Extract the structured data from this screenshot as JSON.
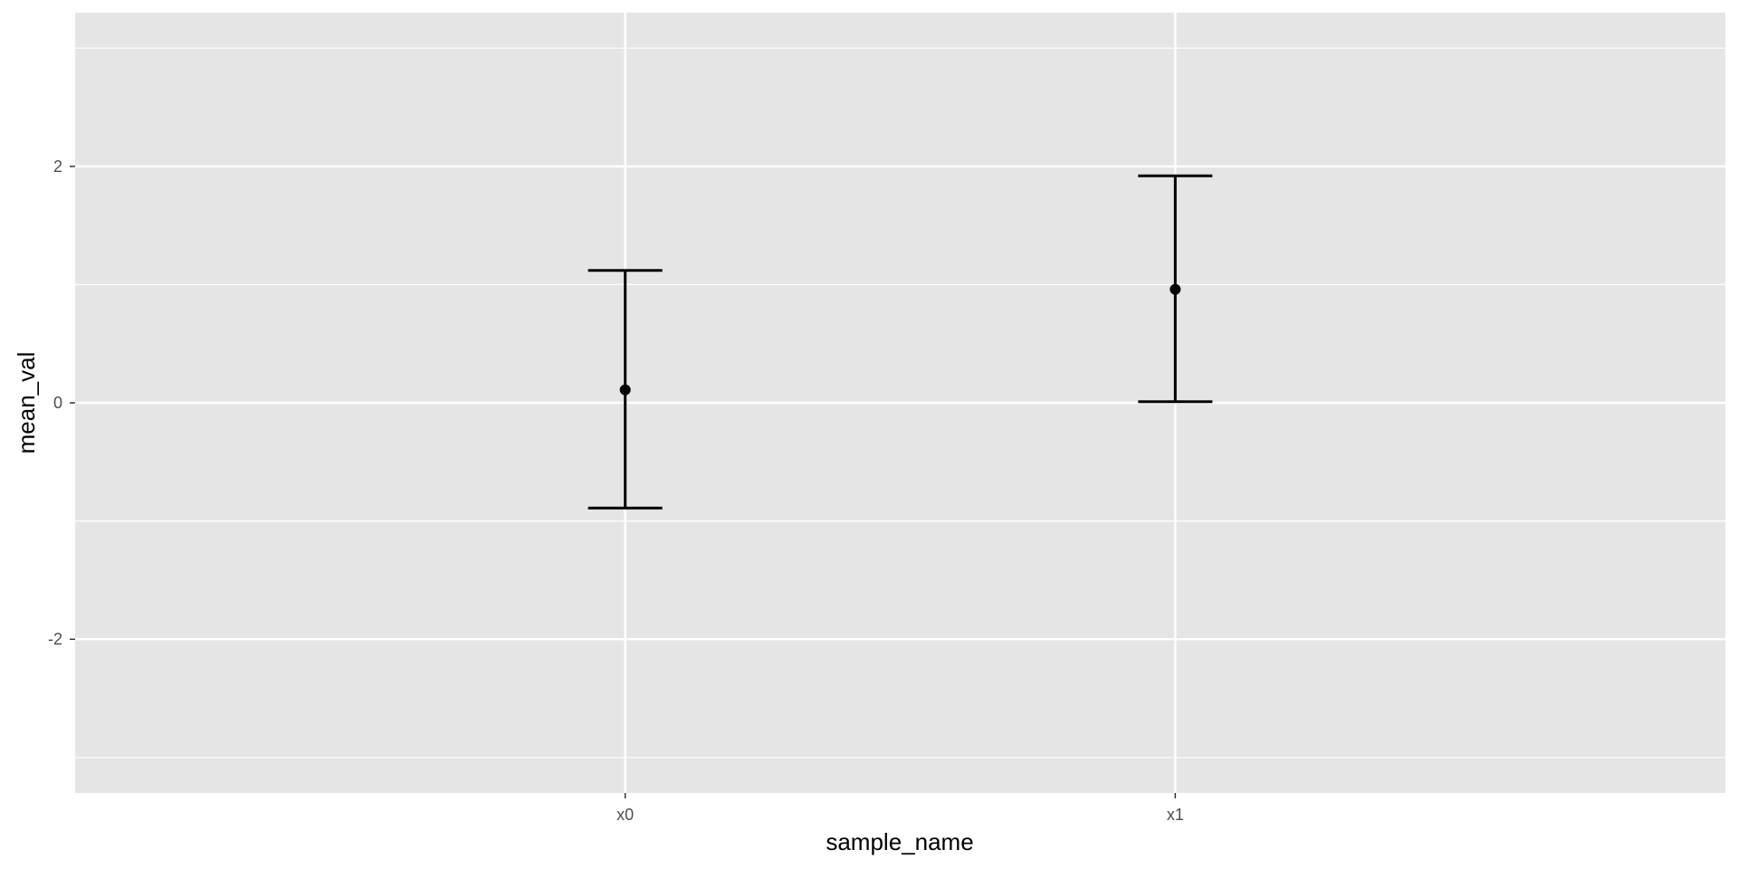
{
  "chart_data": {
    "type": "errorbar",
    "categories": [
      "x0",
      "x1"
    ],
    "series": [
      {
        "values": [
          0.11,
          0.96
        ],
        "lower": [
          -0.89,
          0.01
        ],
        "upper": [
          1.12,
          1.92
        ]
      }
    ],
    "xlabel": "sample_name",
    "ylabel": "mean_val",
    "ylim": [
      -3.3,
      3.3
    ],
    "yticks": [
      -2,
      0,
      2
    ],
    "ytick_labels": [
      "-2",
      "0",
      "2"
    ],
    "grid": true,
    "legend": "none",
    "colors": {
      "panel_background": "#e5e5e5",
      "grid": "#ffffff",
      "marks": "#000000",
      "tick_text": "#4d4d4d"
    }
  }
}
